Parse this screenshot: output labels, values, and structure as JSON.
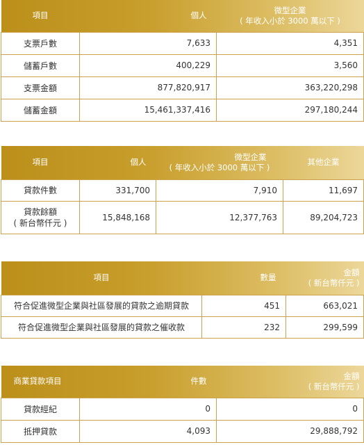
{
  "table1": {
    "headers": [
      "項目",
      "個人",
      "微型企業",
      "( 年收入小於 3000 萬以下 )"
    ],
    "rows": [
      {
        "label": "支票戶數",
        "personal": "7,633",
        "micro": "4,351"
      },
      {
        "label": "儲蓄戶數",
        "personal": "400,229",
        "micro": "3,560"
      },
      {
        "label": "支票金額",
        "personal": "877,820,917",
        "micro": "363,220,298"
      },
      {
        "label": "儲蓄金額",
        "personal": "15,461,337,416",
        "micro": "297,180,244"
      }
    ]
  },
  "table2": {
    "headers": [
      "項目",
      "個人",
      "微型企業",
      "( 年收入小於 3000 萬以下 )",
      "其他企業"
    ],
    "rows": [
      {
        "label": "貸款件數",
        "label2": "",
        "personal": "331,700",
        "micro": "7,910",
        "other": "11,697"
      },
      {
        "label": "貸款餘額",
        "label2": "( 新台幣仟元 )",
        "personal": "15,848,168",
        "micro": "12,377,763",
        "other": "89,204,723"
      }
    ]
  },
  "table3": {
    "headers": [
      "項目",
      "數量",
      "金額",
      "( 新台幣仟元 )"
    ],
    "rows": [
      {
        "label": "符合促進微型企業與社區發展的貸款之逾期貸款",
        "qty": "451",
        "amount": "663,021"
      },
      {
        "label": "符合促進微型企業與社區發展的貸款之催收款",
        "qty": "232",
        "amount": "299,599"
      }
    ]
  },
  "table4": {
    "headers": [
      "商業貸款項目",
      "件數",
      "金額",
      "( 新台幣仟元 )"
    ],
    "rows": [
      {
        "label": "貸款經紀",
        "count": "0",
        "amount": "0"
      },
      {
        "label": "抵押貸款",
        "count": "4,093",
        "amount": "29,888,792"
      }
    ]
  },
  "colors": {
    "header_start": "#bb8f1a",
    "header_end": "#ecd79a",
    "border": "#c9a24a"
  }
}
